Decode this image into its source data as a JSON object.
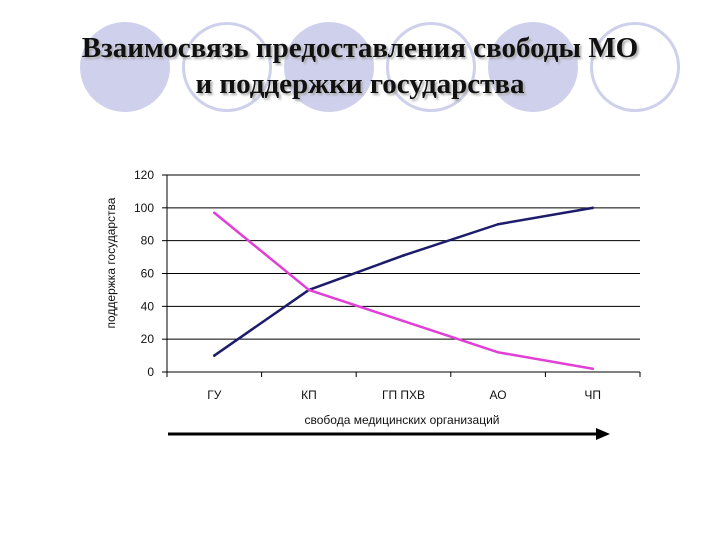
{
  "slide": {
    "title_line1": "Взаимосвязь предоставления свободы МО",
    "title_line2": "и поддержки государства"
  },
  "colors": {
    "decor": "#cfd0ec",
    "series_rising": "#1c1c6b",
    "series_falling": "#e040d6",
    "grid": "#000000",
    "arrow": "#000000"
  },
  "chart_data": {
    "type": "line",
    "categories": [
      "ГУ",
      "КП",
      "ГП ПХВ",
      "АО",
      "ЧП"
    ],
    "xlabel": "свобода медицинских организаций",
    "ylabel": "поддержка государства",
    "ylim": [
      0,
      120
    ],
    "yticks": [
      0,
      20,
      40,
      60,
      80,
      100,
      120
    ],
    "grid": true,
    "legend": "none",
    "series": [
      {
        "values": [
          10,
          50,
          71,
          90,
          100
        ],
        "color": "#1c1c6b"
      },
      {
        "values": [
          97,
          50,
          31,
          12,
          2
        ],
        "color": "#e040d6"
      }
    ]
  }
}
